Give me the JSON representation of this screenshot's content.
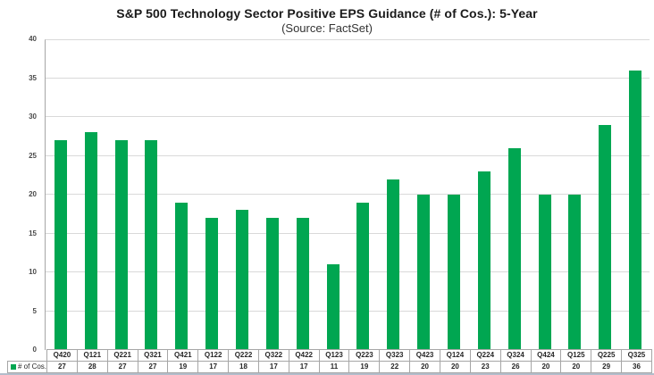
{
  "colors": {
    "bar": "#00A651",
    "grid": "#d9d9d9",
    "axis": "#a6a6a6",
    "table_border": "#a6a6a6",
    "bottom_rule": "#b3bdcb"
  },
  "chart_data": {
    "type": "bar",
    "title": "S&P 500 Technology Sector Positive EPS Guidance (# of Cos.): 5-Year",
    "subtitle": "(Source: FactSet)",
    "categories": [
      "Q420",
      "Q121",
      "Q221",
      "Q321",
      "Q421",
      "Q122",
      "Q222",
      "Q322",
      "Q422",
      "Q123",
      "Q223",
      "Q323",
      "Q423",
      "Q124",
      "Q224",
      "Q324",
      "Q424",
      "Q125",
      "Q225",
      "Q325"
    ],
    "series": [
      {
        "name": "# of Cos.",
        "values": [
          27,
          28,
          27,
          27,
          19,
          17,
          18,
          17,
          17,
          11,
          19,
          22,
          20,
          20,
          23,
          26,
          20,
          20,
          29,
          36
        ]
      }
    ],
    "xlabel": "",
    "ylabel": "",
    "ylim": [
      0,
      40
    ],
    "yticks": [
      0,
      5,
      10,
      15,
      20,
      25,
      30,
      35,
      40
    ],
    "grid": true,
    "bar_color": "#00A651",
    "legend_position": "bottom-left-table",
    "data_table_shown": true
  }
}
